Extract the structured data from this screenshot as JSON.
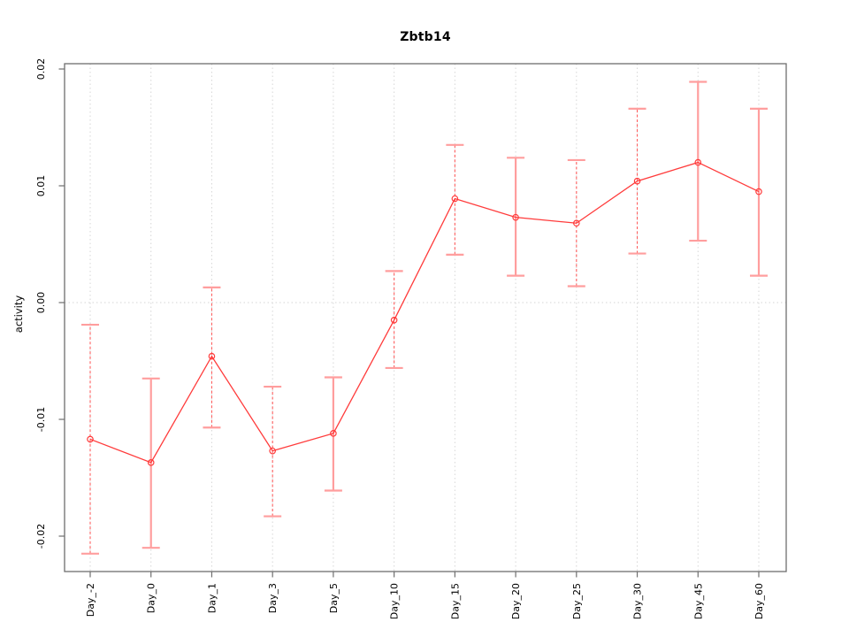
{
  "figure": {
    "window_background": "#ffffff"
  },
  "chart_data": {
    "type": "line",
    "title": "Zbtb14",
    "xlabel": "",
    "ylabel": "activity",
    "categories": [
      "Day_-2",
      "Day_0",
      "Day_1",
      "Day_3",
      "Day_5",
      "Day_10",
      "Day_15",
      "Day_20",
      "Day_25",
      "Day_30",
      "Day_45",
      "Day_60"
    ],
    "series": [
      {
        "name": "activity",
        "values": [
          -0.0117,
          -0.0137,
          -0.0046,
          -0.0127,
          -0.0112,
          -0.0015,
          0.0089,
          0.0073,
          0.0068,
          0.0104,
          0.012,
          0.0095
        ],
        "ci_lower": [
          -0.0215,
          -0.021,
          -0.0107,
          -0.0183,
          -0.0161,
          -0.0056,
          0.0041,
          0.0023,
          0.0014,
          0.0042,
          0.0053,
          0.0023
        ],
        "ci_upper": [
          -0.0019,
          -0.0065,
          0.0013,
          -0.0072,
          -0.0064,
          0.0027,
          0.0135,
          0.0124,
          0.0122,
          0.0166,
          0.0189,
          0.0166
        ],
        "error_bar_dashed": [
          true,
          false,
          true,
          true,
          false,
          true,
          true,
          false,
          true,
          true,
          false,
          false
        ]
      }
    ],
    "ylim": [
      -0.0225,
      0.0205
    ],
    "yticks": [
      -0.02,
      -0.01,
      0,
      0.01,
      0.02
    ],
    "ytick_labels": [
      "-0.02",
      "-0.01",
      "0.00",
      "0.01",
      "0.02"
    ],
    "grid": {
      "vertical_gridlines": true,
      "zero_reference_line": true,
      "style": "dotted"
    },
    "legend_position": "none",
    "marker": "open-circle",
    "colors": {
      "line": "#ff3b3b",
      "marker": "#ff3b3b",
      "error_bar_solid": "#ff9e9e",
      "error_bar_dashed": "#ff5f5f",
      "error_bar_cap": "#ff9e9e",
      "grid": "#d6d6d6",
      "axis": "#6e6e6e",
      "text": "#000000",
      "background": "#ffffff"
    }
  }
}
